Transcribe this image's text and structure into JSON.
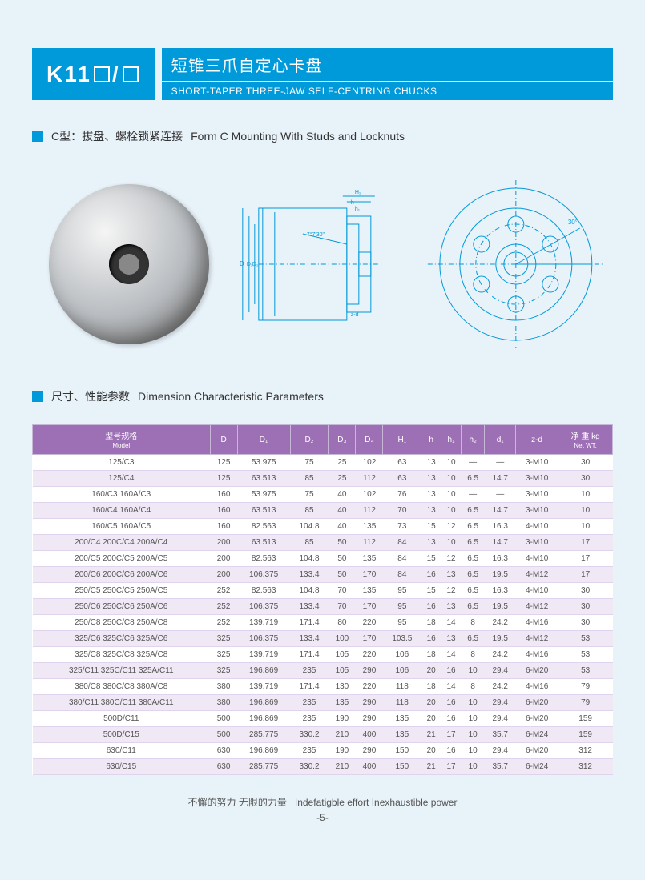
{
  "header": {
    "model_prefix": "K11",
    "title_cn": "短锥三爪自定心卡盘",
    "title_en": "SHORT-TAPER THREE-JAW SELF-CENTRING CHUCKS"
  },
  "section_c": {
    "label_cn": "C型：拔盘、螺栓锁紧连接",
    "label_en": "Form C Mounting With Studs and Locknuts"
  },
  "section_table": {
    "label_cn": "尺寸、性能参数",
    "label_en": "Dimension  Characteristic Parameters"
  },
  "diagram_labels": {
    "H1": "H₁",
    "h": "h",
    "h1": "h₁",
    "angle1": "7°7'30\"",
    "zd": "z-d",
    "D": "D",
    "D1": "D₁",
    "D2": "D₂",
    "D3": "D₃",
    "angle2": "30°"
  },
  "table": {
    "headers": [
      {
        "cn": "型号规格",
        "en": "Model"
      },
      {
        "label": "D"
      },
      {
        "label": "D₁"
      },
      {
        "label": "D₂"
      },
      {
        "label": "D₃"
      },
      {
        "label": "D₄"
      },
      {
        "label": "H₁"
      },
      {
        "label": "h"
      },
      {
        "label": "h₁"
      },
      {
        "label": "h₂"
      },
      {
        "label": "d₁"
      },
      {
        "label": "z-d"
      },
      {
        "cn": "净 重 kg",
        "en": "Net WT."
      }
    ],
    "rows": [
      [
        "125/C3",
        "125",
        "53.975",
        "75",
        "25",
        "102",
        "63",
        "13",
        "10",
        "—",
        "—",
        "3-M10",
        "30"
      ],
      [
        "125/C4",
        "125",
        "63.513",
        "85",
        "25",
        "112",
        "63",
        "13",
        "10",
        "6.5",
        "14.7",
        "3-M10",
        "30"
      ],
      [
        "160/C3 160A/C3",
        "160",
        "53.975",
        "75",
        "40",
        "102",
        "76",
        "13",
        "10",
        "—",
        "—",
        "3-M10",
        "10"
      ],
      [
        "160/C4 160A/C4",
        "160",
        "63.513",
        "85",
        "40",
        "112",
        "70",
        "13",
        "10",
        "6.5",
        "14.7",
        "3-M10",
        "10"
      ],
      [
        "160/C5 160A/C5",
        "160",
        "82.563",
        "104.8",
        "40",
        "135",
        "73",
        "15",
        "12",
        "6.5",
        "16.3",
        "4-M10",
        "10"
      ],
      [
        "200/C4 200C/C4 200A/C4",
        "200",
        "63.513",
        "85",
        "50",
        "112",
        "84",
        "13",
        "10",
        "6.5",
        "14.7",
        "3-M10",
        "17"
      ],
      [
        "200/C5 200C/C5 200A/C5",
        "200",
        "82.563",
        "104.8",
        "50",
        "135",
        "84",
        "15",
        "12",
        "6.5",
        "16.3",
        "4-M10",
        "17"
      ],
      [
        "200/C6 200C/C6 200A/C6",
        "200",
        "106.375",
        "133.4",
        "50",
        "170",
        "84",
        "16",
        "13",
        "6.5",
        "19.5",
        "4-M12",
        "17"
      ],
      [
        "250/C5 250C/C5 250A/C5",
        "252",
        "82.563",
        "104.8",
        "70",
        "135",
        "95",
        "15",
        "12",
        "6.5",
        "16.3",
        "4-M10",
        "30"
      ],
      [
        "250/C6 250C/C6 250A/C6",
        "252",
        "106.375",
        "133.4",
        "70",
        "170",
        "95",
        "16",
        "13",
        "6.5",
        "19.5",
        "4-M12",
        "30"
      ],
      [
        "250/C8 250C/C8 250A/C8",
        "252",
        "139.719",
        "171.4",
        "80",
        "220",
        "95",
        "18",
        "14",
        "8",
        "24.2",
        "4-M16",
        "30"
      ],
      [
        "325/C6 325C/C6 325A/C6",
        "325",
        "106.375",
        "133.4",
        "100",
        "170",
        "103.5",
        "16",
        "13",
        "6.5",
        "19.5",
        "4-M12",
        "53"
      ],
      [
        "325/C8 325C/C8 325A/C8",
        "325",
        "139.719",
        "171.4",
        "105",
        "220",
        "106",
        "18",
        "14",
        "8",
        "24.2",
        "4-M16",
        "53"
      ],
      [
        "325/C11 325C/C11 325A/C11",
        "325",
        "196.869",
        "235",
        "105",
        "290",
        "106",
        "20",
        "16",
        "10",
        "29.4",
        "6-M20",
        "53"
      ],
      [
        "380/C8 380C/C8 380A/C8",
        "380",
        "139.719",
        "171.4",
        "130",
        "220",
        "118",
        "18",
        "14",
        "8",
        "24.2",
        "4-M16",
        "79"
      ],
      [
        "380/C11 380C/C11 380A/C11",
        "380",
        "196.869",
        "235",
        "135",
        "290",
        "118",
        "20",
        "16",
        "10",
        "29.4",
        "6-M20",
        "79"
      ],
      [
        "500D/C11",
        "500",
        "196.869",
        "235",
        "190",
        "290",
        "135",
        "20",
        "16",
        "10",
        "29.4",
        "6-M20",
        "159"
      ],
      [
        "500D/C15",
        "500",
        "285.775",
        "330.2",
        "210",
        "400",
        "135",
        "21",
        "17",
        "10",
        "35.7",
        "6-M24",
        "159"
      ],
      [
        "630/C11",
        "630",
        "196.869",
        "235",
        "190",
        "290",
        "150",
        "20",
        "16",
        "10",
        "29.4",
        "6-M20",
        "312"
      ],
      [
        "630/C15",
        "630",
        "285.775",
        "330.2",
        "210",
        "400",
        "150",
        "21",
        "17",
        "10",
        "35.7",
        "6-M24",
        "312"
      ]
    ]
  },
  "footer": {
    "motto_cn": "不懈的努力  无限的力量",
    "motto_en": "Indefatigble effort  Inexhaustible power",
    "page_num": "-5-"
  }
}
